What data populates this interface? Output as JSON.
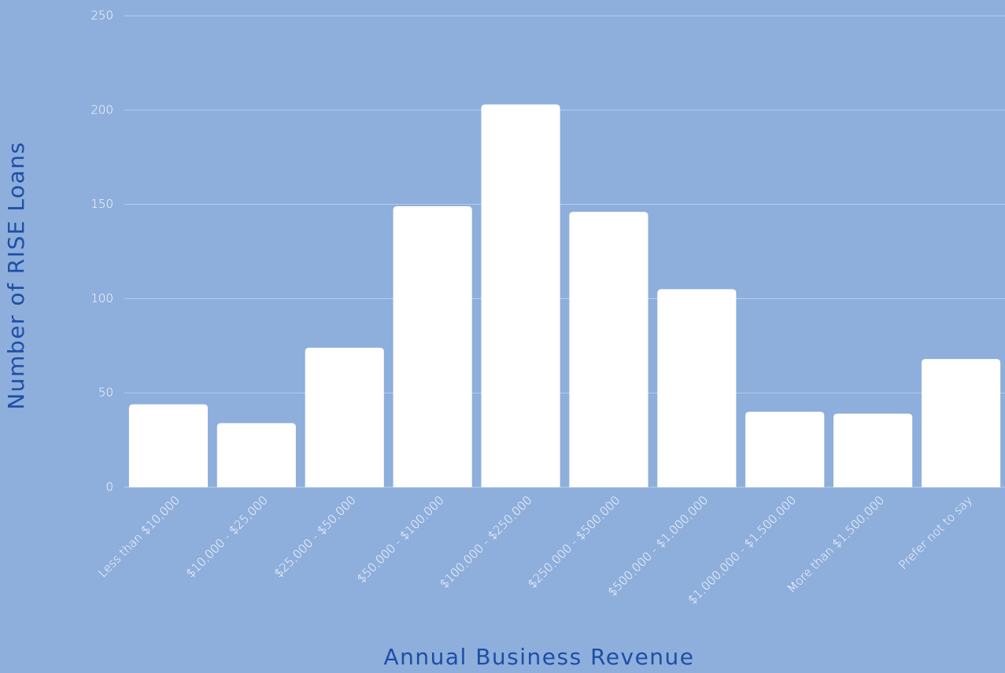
{
  "chart_data": {
    "type": "bar",
    "x_label": "Annual Business Revenue",
    "y_label": "Number of RISE Loans",
    "categories": [
      "Less than $10,000",
      "$10,000 - $25,000",
      "$25,000 - $50,000",
      "$50,000 - $100,000",
      "$100,000 - $250,000",
      "$250,000 - $500,000",
      "$500,000 - $1,000,000",
      "$1,000,000 - $1,500,000",
      "More than $1,500,000",
      "Prefer not to say"
    ],
    "values": [
      44,
      34,
      74,
      149,
      203,
      146,
      105,
      40,
      39,
      68
    ],
    "color": "#ffffff",
    "ylim": [
      0,
      250
    ],
    "yticks": [
      0,
      50,
      100,
      150,
      200,
      250
    ],
    "grid": true
  }
}
